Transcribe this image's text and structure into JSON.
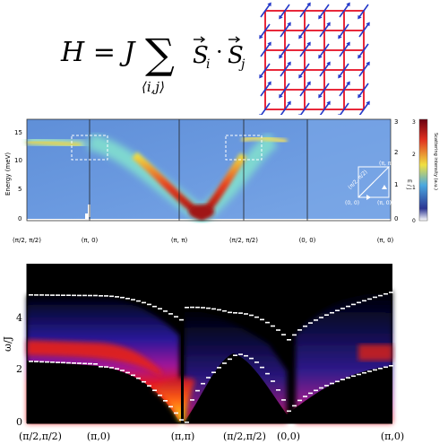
{
  "hamiltonian": {
    "lhs": "H = J",
    "sum_symbol": "∑",
    "sum_index": "⟨i,j⟩",
    "operator": "S",
    "sub_i": "i",
    "sub_j": "j",
    "dot": "·"
  },
  "experiment": {
    "ylabel": "Energy (meV)",
    "yticks": [
      "0",
      "5",
      "10",
      "15"
    ],
    "right_axis_label": "E / J",
    "right_ticks": [
      "0",
      "1",
      "2",
      "3"
    ],
    "colorbar_label": "Scattering intensity (a.u.)",
    "colorbar_ticks": [
      "0",
      "1",
      "2",
      "3"
    ],
    "xticks": [
      "(π/2, π/2)",
      "(π, 0)",
      "(π, π)",
      "(π/2, π/2)",
      "(0, 0)",
      "(π, 0)"
    ],
    "inset_labels": [
      "(π, π)",
      "(π/2, π/2)",
      "(0, 0)",
      "(π, 0)"
    ]
  },
  "calculation": {
    "ylabel": "ω/J",
    "yticks": [
      "0",
      "2",
      "4"
    ],
    "xticks": [
      "(π/2,π/2)",
      "(π,0)",
      "(π,π)",
      "(π/2,π/2)",
      "(0,0)",
      "(π,0)"
    ]
  },
  "colors": {
    "lattice_bond": "#e8283a",
    "spin_arrow": "#2438c8",
    "band_hot": "#ff3010",
    "band_cool": "#1a1a9a"
  }
}
